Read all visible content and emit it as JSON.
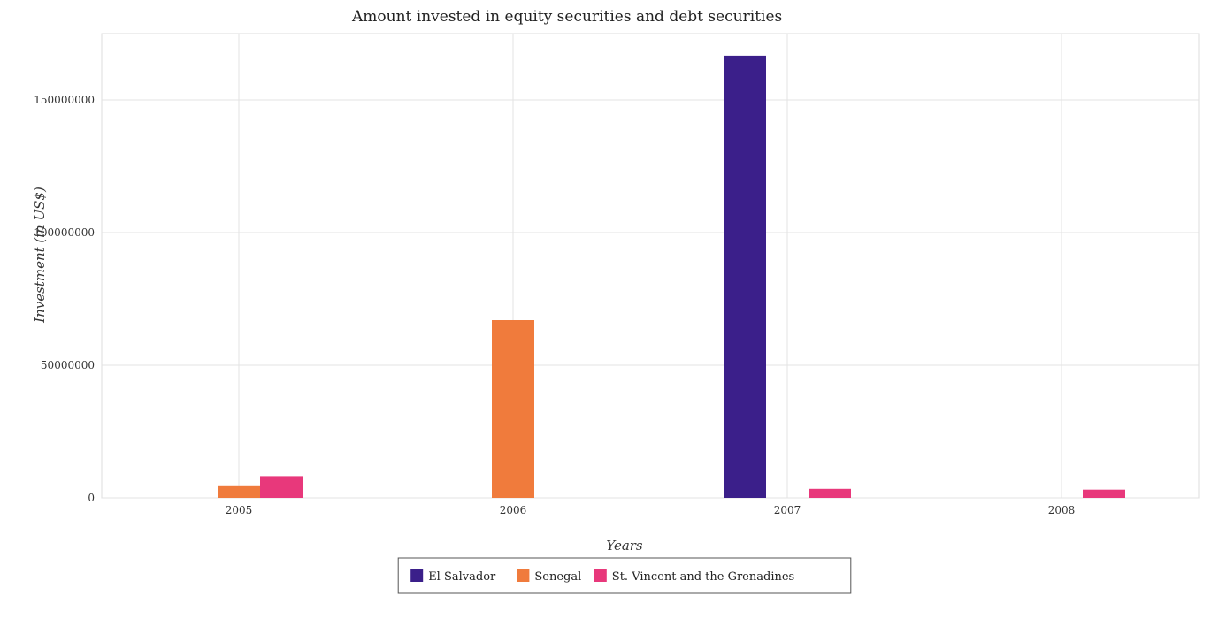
{
  "chart_data": {
    "type": "bar",
    "title": "Amount invested in equity securities and debt securities",
    "xlabel": "Years",
    "ylabel": "Investment (in US$)",
    "categories": [
      "2005",
      "2006",
      "2007",
      "2008"
    ],
    "ylim": [
      0,
      175000000
    ],
    "yticks": [
      0,
      50000000,
      100000000,
      150000000
    ],
    "ytick_labels": [
      "0",
      "50000000",
      "100000000",
      "150000000"
    ],
    "grid": true,
    "legend_position": "bottom-center",
    "series": [
      {
        "name": "El Salvador",
        "color": "#3b1f8a",
        "values": [
          0,
          0,
          166700000,
          0
        ]
      },
      {
        "name": "Senegal",
        "color": "#f07b3c",
        "values": [
          4400000,
          67000000,
          0,
          0
        ]
      },
      {
        "name": "St. Vincent and the Grenadines",
        "color": "#e8387b",
        "values": [
          8200000,
          0,
          3400000,
          3100000
        ]
      }
    ]
  }
}
